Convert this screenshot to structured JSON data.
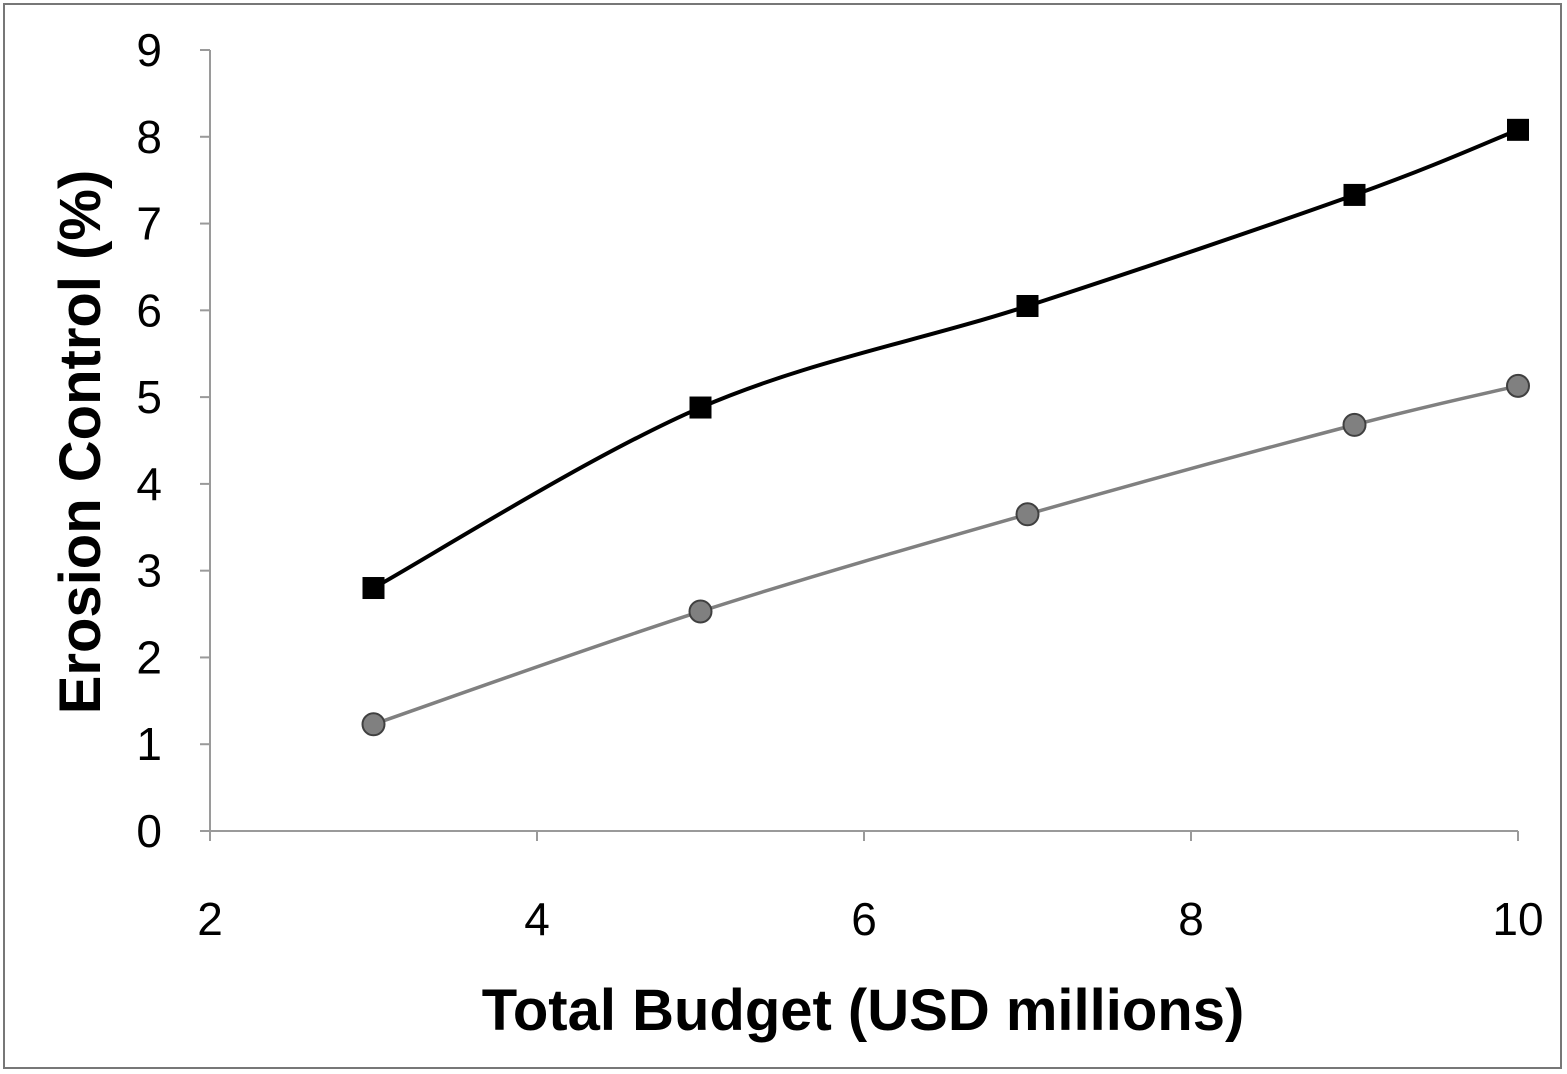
{
  "chart_data": {
    "type": "line",
    "title": "",
    "xlabel": "Total Budget (USD millions)",
    "ylabel": "Erosion Control (%)",
    "xlim": [
      2,
      10
    ],
    "ylim": [
      0,
      9
    ],
    "x_ticks": [
      2,
      4,
      6,
      8,
      10
    ],
    "y_ticks": [
      0,
      1,
      2,
      3,
      4,
      5,
      6,
      7,
      8,
      9
    ],
    "grid": false,
    "legend": "none",
    "x": [
      3,
      5,
      7,
      9,
      10
    ],
    "series": [
      {
        "marker": "square",
        "color": "#000000",
        "values": [
          2.8,
          4.88,
          6.05,
          7.33,
          8.08
        ]
      },
      {
        "marker": "circle",
        "color": "#808080",
        "values": [
          1.23,
          2.53,
          3.65,
          4.68,
          5.13
        ]
      }
    ]
  }
}
